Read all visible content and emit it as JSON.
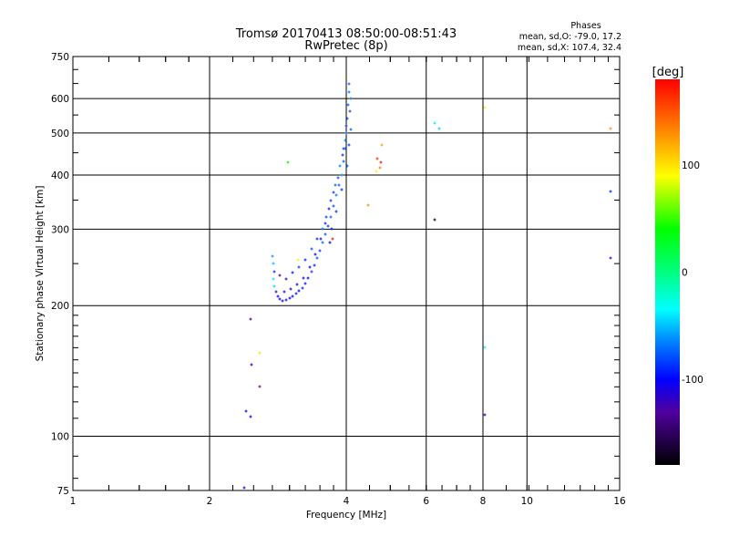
{
  "chart_data": {
    "type": "scatter",
    "title": "Tromsø 20170413 08:50:00-08:51:43",
    "subtitle": "RwPretec (8p)",
    "stats": {
      "heading": "Phases",
      "o_line": "mean, sd,O: -79.0, 17.2",
      "x_line": "mean, sd,X: 107.4, 32.4"
    },
    "xlabel": "Frequency [MHz]",
    "ylabel": "Stationary phase Virtual Height [km]",
    "xscale": "log",
    "yscale": "log",
    "xlim": [
      1,
      16
    ],
    "ylim": [
      75,
      750
    ],
    "xticks": [
      1,
      2,
      4,
      6,
      8,
      10,
      16
    ],
    "xtick_labels": [
      "1",
      "2",
      "4",
      "6",
      "8",
      "10",
      "16"
    ],
    "xgrid": [
      2,
      4,
      6,
      8,
      10
    ],
    "yticks": [
      75,
      100,
      200,
      300,
      400,
      500,
      600,
      750
    ],
    "ytick_labels": [
      "75",
      "100",
      "200",
      "300",
      "400",
      "500",
      "600",
      "750"
    ],
    "ygrid": [
      100,
      200,
      300,
      400,
      500,
      600
    ],
    "colorbar": {
      "label": "[deg]",
      "range": [
        -180,
        180
      ],
      "ticks": [
        100,
        0,
        -100
      ],
      "tick_labels": [
        "100",
        "0",
        "-100"
      ],
      "stops": [
        [
          -180,
          "#000000"
        ],
        [
          -130,
          "#5000a0"
        ],
        [
          -100,
          "#0000ff"
        ],
        [
          -60,
          "#0096ff"
        ],
        [
          -35,
          "#00ffff"
        ],
        [
          0,
          "#00ff80"
        ],
        [
          40,
          "#00ff00"
        ],
        [
          90,
          "#ffff00"
        ],
        [
          130,
          "#ff8c00"
        ],
        [
          180,
          "#ff0000"
        ]
      ]
    },
    "points_columns": [
      "frequency_MHz",
      "height_km",
      "phase_deg"
    ],
    "points": [
      [
        2.75,
        260,
        -60
      ],
      [
        2.76,
        250,
        -50
      ],
      [
        2.78,
        240,
        -90
      ],
      [
        2.77,
        230,
        -40
      ],
      [
        2.78,
        222,
        -45
      ],
      [
        2.8,
        215,
        -95
      ],
      [
        2.83,
        210,
        -105
      ],
      [
        2.86,
        207,
        -110
      ],
      [
        2.9,
        205,
        -110
      ],
      [
        2.95,
        206,
        -105
      ],
      [
        3.0,
        208,
        -100
      ],
      [
        3.05,
        210,
        -105
      ],
      [
        3.1,
        213,
        -95
      ],
      [
        3.15,
        216,
        -100
      ],
      [
        3.2,
        220,
        -90
      ],
      [
        3.25,
        225,
        -95
      ],
      [
        3.3,
        232,
        -100
      ],
      [
        3.35,
        240,
        -85
      ],
      [
        3.4,
        248,
        -90
      ],
      [
        3.45,
        258,
        -80
      ],
      [
        3.5,
        268,
        -85
      ],
      [
        3.55,
        280,
        -75
      ],
      [
        3.6,
        292,
        -80
      ],
      [
        3.65,
        305,
        -85
      ],
      [
        3.7,
        320,
        -75
      ],
      [
        3.75,
        340,
        -80
      ],
      [
        3.8,
        360,
        -70
      ],
      [
        3.85,
        380,
        -75
      ],
      [
        3.9,
        400,
        -70
      ],
      [
        3.95,
        430,
        -80
      ],
      [
        3.98,
        460,
        -75
      ],
      [
        4.0,
        500,
        -70
      ],
      [
        4.02,
        540,
        -80
      ],
      [
        4.04,
        580,
        -75
      ],
      [
        4.05,
        620,
        -70
      ],
      [
        4.05,
        650,
        -75
      ],
      [
        2.85,
        235,
        -130
      ],
      [
        2.95,
        230,
        -120
      ],
      [
        3.05,
        238,
        -95
      ],
      [
        3.15,
        245,
        -85
      ],
      [
        3.25,
        255,
        -90
      ],
      [
        3.35,
        270,
        -80
      ],
      [
        3.45,
        285,
        -90
      ],
      [
        3.55,
        300,
        -70
      ],
      [
        3.62,
        320,
        -80
      ],
      [
        3.7,
        350,
        -85
      ],
      [
        3.78,
        380,
        -75
      ],
      [
        3.88,
        420,
        -65
      ],
      [
        3.95,
        460,
        -85
      ],
      [
        4.0,
        520,
        -90
      ],
      [
        4.08,
        560,
        -80
      ],
      [
        4.1,
        600,
        -70
      ],
      [
        3.68,
        280,
        -100
      ],
      [
        3.72,
        300,
        -95
      ],
      [
        3.8,
        330,
        -90
      ],
      [
        3.9,
        370,
        -90
      ],
      [
        4.02,
        420,
        -80
      ],
      [
        4.06,
        470,
        -85
      ],
      [
        4.1,
        510,
        -75
      ],
      [
        2.92,
        215,
        -115
      ],
      [
        3.02,
        218,
        -110
      ],
      [
        3.12,
        224,
        -105
      ],
      [
        3.22,
        232,
        -110
      ],
      [
        3.32,
        245,
        -105
      ],
      [
        3.42,
        262,
        -100
      ],
      [
        3.52,
        285,
        -95
      ],
      [
        3.6,
        310,
        -90
      ],
      [
        3.66,
        335,
        -95
      ],
      [
        3.75,
        365,
        -85
      ],
      [
        3.84,
        395,
        -80
      ],
      [
        3.93,
        445,
        -90
      ],
      [
        3.99,
        480,
        -65
      ],
      [
        2.97,
        428,
        40
      ],
      [
        4.47,
        341,
        130
      ],
      [
        4.68,
        437,
        165
      ],
      [
        4.76,
        428,
        170
      ],
      [
        4.8,
        470,
        125
      ],
      [
        4.65,
        407,
        95
      ],
      [
        4.74,
        415,
        135
      ],
      [
        3.13,
        255,
        95
      ],
      [
        3.73,
        285,
        175
      ],
      [
        6.27,
        527,
        -40
      ],
      [
        6.4,
        513,
        -45
      ],
      [
        6.27,
        315,
        -175
      ],
      [
        8.07,
        572,
        95
      ],
      [
        8.07,
        160,
        -30
      ],
      [
        8.07,
        112,
        -110
      ],
      [
        15.3,
        513,
        130
      ],
      [
        15.3,
        367,
        -90
      ],
      [
        15.3,
        258,
        -130
      ],
      [
        2.46,
        186,
        -130
      ],
      [
        2.47,
        146,
        -105
      ],
      [
        2.58,
        156,
        80
      ],
      [
        2.58,
        130,
        -130
      ],
      [
        2.41,
        114,
        -100
      ],
      [
        2.46,
        111,
        -100
      ],
      [
        2.38,
        76,
        -100
      ]
    ]
  }
}
